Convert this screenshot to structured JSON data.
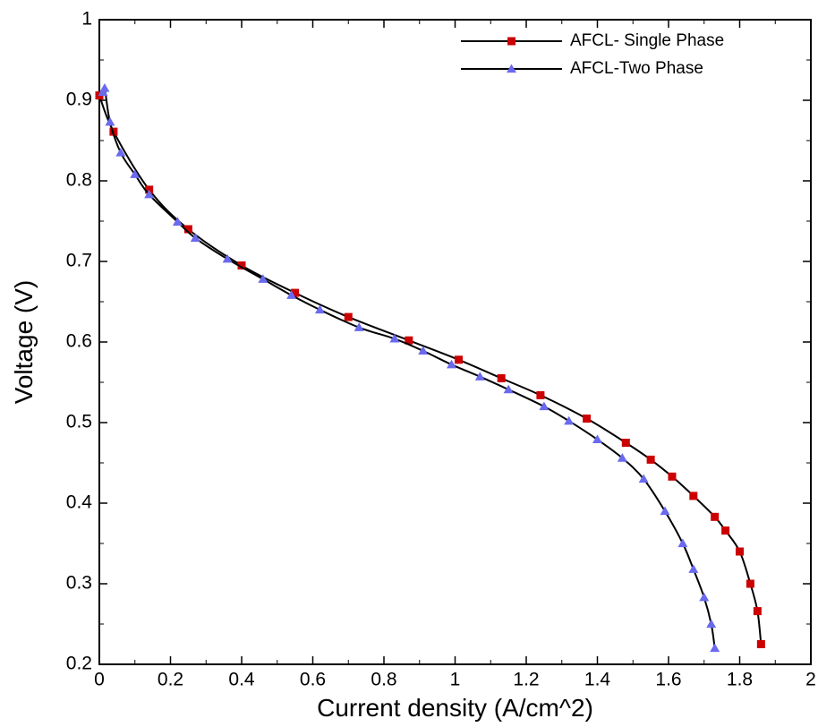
{
  "chart_data": {
    "type": "line",
    "title": "",
    "xlabel": "Current density (A/cm^2)",
    "ylabel": "Voltage (V)",
    "xlim": [
      0,
      2
    ],
    "ylim": [
      0.2,
      1
    ],
    "x_ticks": [
      "0",
      "0.2",
      "0.4",
      "0.6",
      "0.8",
      "1",
      "1.2",
      "1.4",
      "1.6",
      "1.8",
      "2"
    ],
    "y_ticks": [
      "0.2",
      "0.3",
      "0.4",
      "0.5",
      "0.6",
      "0.7",
      "0.8",
      "0.9",
      "1"
    ],
    "grid": false,
    "legend_position": "top-right",
    "series": [
      {
        "name": "AFCL- Single Phase",
        "marker": "square",
        "marker_color": "#cc0000",
        "line_color": "#000000",
        "x": [
          0.0,
          0.04,
          0.14,
          0.25,
          0.4,
          0.55,
          0.7,
          0.87,
          1.01,
          1.13,
          1.24,
          1.37,
          1.48,
          1.55,
          1.61,
          1.67,
          1.73,
          1.76,
          1.8,
          1.83,
          1.85,
          1.86
        ],
        "y": [
          0.906,
          0.861,
          0.789,
          0.74,
          0.695,
          0.661,
          0.631,
          0.602,
          0.578,
          0.555,
          0.534,
          0.505,
          0.475,
          0.454,
          0.433,
          0.409,
          0.383,
          0.366,
          0.34,
          0.3,
          0.266,
          0.225
        ]
      },
      {
        "name": "AFCL-Two Phase",
        "marker": "triangle",
        "marker_color": "#6a6aee",
        "line_color": "#000000",
        "x": [
          0.01,
          0.015,
          0.03,
          0.06,
          0.1,
          0.14,
          0.22,
          0.27,
          0.36,
          0.46,
          0.54,
          0.62,
          0.73,
          0.83,
          0.91,
          0.99,
          1.07,
          1.15,
          1.25,
          1.32,
          1.4,
          1.47,
          1.53,
          1.59,
          1.64,
          1.67,
          1.7,
          1.72,
          1.73
        ],
        "y": [
          0.91,
          0.915,
          0.873,
          0.835,
          0.808,
          0.783,
          0.749,
          0.729,
          0.703,
          0.678,
          0.658,
          0.64,
          0.618,
          0.604,
          0.589,
          0.572,
          0.557,
          0.541,
          0.52,
          0.502,
          0.479,
          0.456,
          0.43,
          0.39,
          0.35,
          0.318,
          0.283,
          0.25,
          0.22
        ]
      }
    ]
  }
}
